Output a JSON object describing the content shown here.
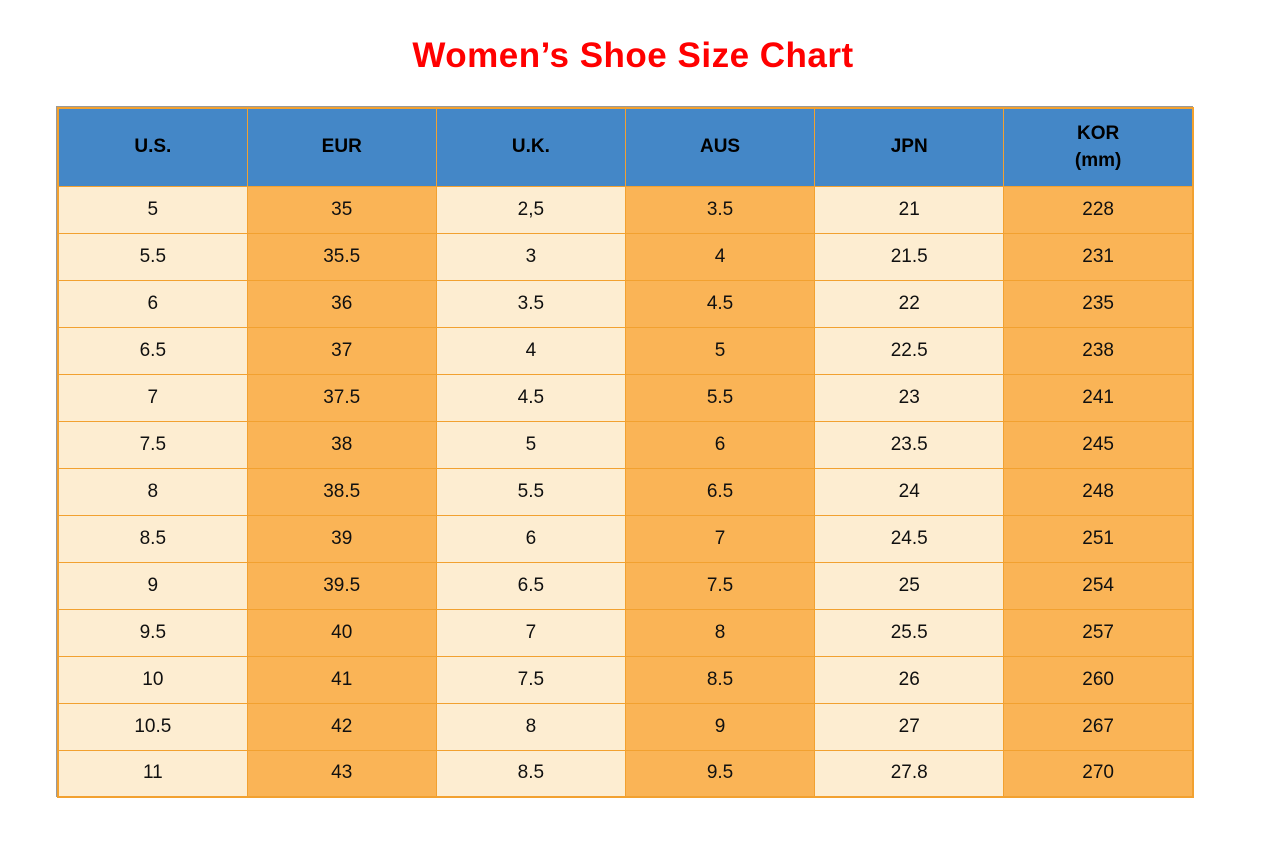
{
  "title": {
    "text": "Women’s Shoe Size Chart"
  },
  "colors": {
    "page_bg": "#ffffff",
    "title_color": "#ff0000",
    "header_bg": "#4487c7",
    "header_text": "#000000",
    "cell_light": "#fdedd1",
    "cell_orange": "#fab456",
    "border_color": "#f2a130",
    "cell_text": "#101010"
  },
  "chart_data": {
    "type": "table",
    "title": "Women’s Shoe Size Chart",
    "header": [
      {
        "label": "U.S.",
        "sub": ""
      },
      {
        "label": "EUR",
        "sub": ""
      },
      {
        "label": "U.K.",
        "sub": ""
      },
      {
        "label": "AUS",
        "sub": ""
      },
      {
        "label": "JPN",
        "sub": ""
      },
      {
        "label": "KOR",
        "sub": "(mm)"
      }
    ],
    "rows": [
      [
        "5",
        "35",
        "2,5",
        "3.5",
        "21",
        "228"
      ],
      [
        "5.5",
        "35.5",
        "3",
        "4",
        "21.5",
        "231"
      ],
      [
        "6",
        "36",
        "3.5",
        "4.5",
        "22",
        "235"
      ],
      [
        "6.5",
        "37",
        "4",
        "5",
        "22.5",
        "238"
      ],
      [
        "7",
        "37.5",
        "4.5",
        "5.5",
        "23",
        "241"
      ],
      [
        "7.5",
        "38",
        "5",
        "6",
        "23.5",
        "245"
      ],
      [
        "8",
        "38.5",
        "5.5",
        "6.5",
        "24",
        "248"
      ],
      [
        "8.5",
        "39",
        "6",
        "7",
        "24.5",
        "251"
      ],
      [
        "9",
        "39.5",
        "6.5",
        "7.5",
        "25",
        "254"
      ],
      [
        "9.5",
        "40",
        "7",
        "8",
        "25.5",
        "257"
      ],
      [
        "10",
        "41",
        "7.5",
        "8.5",
        "26",
        "260"
      ],
      [
        "10.5",
        "42",
        "8",
        "9",
        "27",
        "267"
      ],
      [
        "11",
        "43",
        "8.5",
        "9.5",
        "27.8",
        "270"
      ]
    ],
    "layout": {
      "column_pattern": [
        "light",
        "orange",
        "light",
        "orange",
        "light",
        "orange"
      ],
      "grid": true
    }
  }
}
